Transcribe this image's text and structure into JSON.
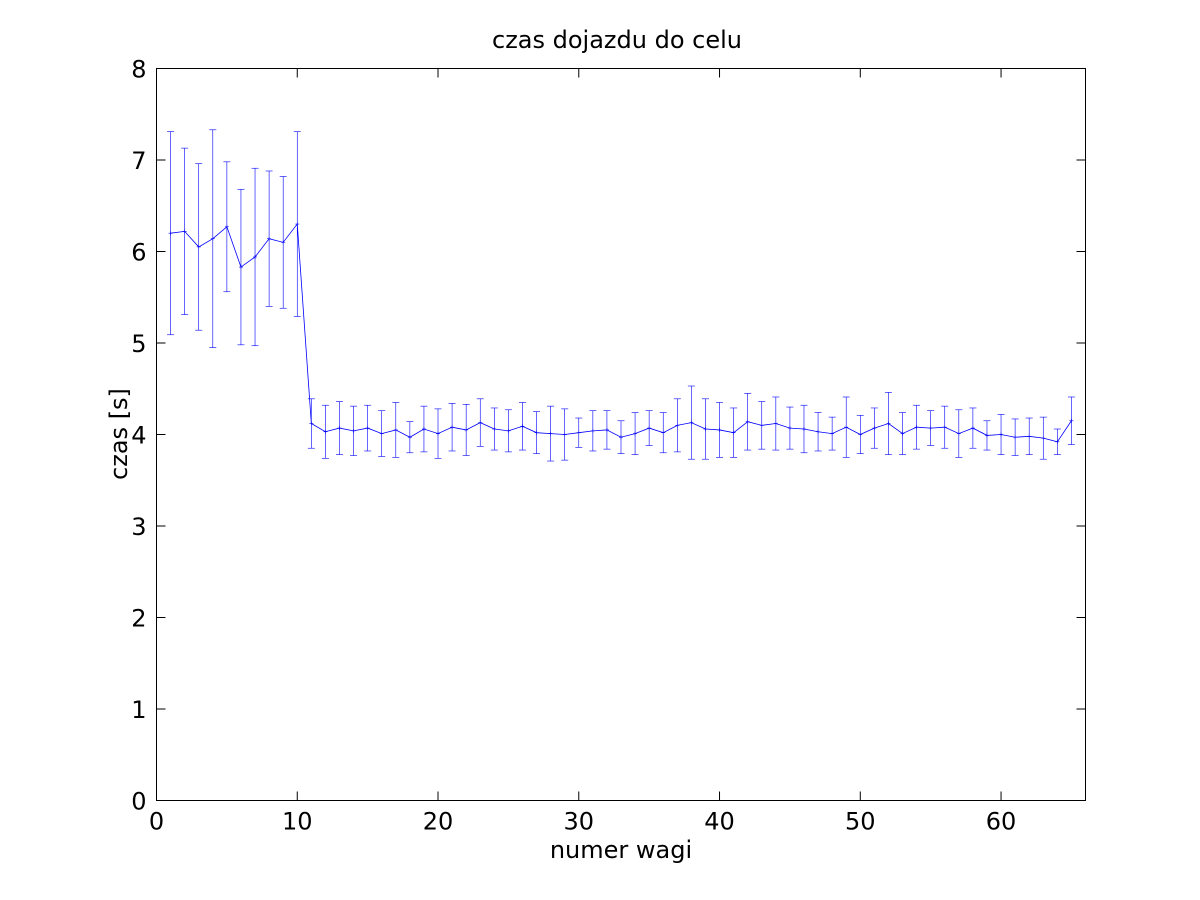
{
  "chart_data": {
    "type": "line",
    "title": "czas dojazdu do celu",
    "xlabel": "numer wagi",
    "ylabel": "czas [s]",
    "xlim": [
      0,
      66
    ],
    "ylim": [
      0,
      8
    ],
    "xticks": [
      0,
      10,
      20,
      30,
      40,
      50,
      60
    ],
    "yticks": [
      0,
      1,
      2,
      3,
      4,
      5,
      6,
      7,
      8
    ],
    "grid": false,
    "color": "#0000ff",
    "series": [
      {
        "x": [
          1,
          2,
          3,
          4,
          5,
          6,
          7,
          8,
          9,
          10,
          11,
          12,
          13,
          14,
          15,
          16,
          17,
          18,
          19,
          20,
          21,
          22,
          23,
          24,
          25,
          26,
          27,
          28,
          29,
          30,
          31,
          32,
          33,
          34,
          35,
          36,
          37,
          38,
          39,
          40,
          41,
          42,
          43,
          44,
          45,
          46,
          47,
          48,
          49,
          50,
          51,
          52,
          53,
          54,
          55,
          56,
          57,
          58,
          59,
          60,
          61,
          62,
          63,
          64,
          65
        ],
        "y": [
          6.2,
          6.22,
          6.05,
          6.14,
          6.27,
          5.83,
          5.94,
          6.14,
          6.1,
          6.3,
          4.12,
          4.03,
          4.07,
          4.04,
          4.07,
          4.01,
          4.05,
          3.97,
          4.06,
          4.01,
          4.08,
          4.05,
          4.13,
          4.06,
          4.04,
          4.09,
          4.02,
          4.01,
          4.0,
          4.02,
          4.04,
          4.05,
          3.97,
          4.01,
          4.07,
          4.02,
          4.1,
          4.13,
          4.06,
          4.05,
          4.02,
          4.14,
          4.1,
          4.12,
          4.07,
          4.06,
          4.03,
          4.01,
          4.08,
          4.0,
          4.07,
          4.12,
          4.01,
          4.08,
          4.07,
          4.08,
          4.01,
          4.07,
          3.99,
          4.0,
          3.97,
          3.98,
          3.96,
          3.92,
          4.15
        ],
        "err": [
          1.11,
          0.91,
          0.91,
          1.19,
          0.71,
          0.85,
          0.97,
          0.74,
          0.72,
          1.01,
          0.27,
          0.29,
          0.29,
          0.27,
          0.25,
          0.25,
          0.3,
          0.17,
          0.25,
          0.27,
          0.26,
          0.28,
          0.26,
          0.23,
          0.23,
          0.26,
          0.23,
          0.3,
          0.28,
          0.16,
          0.22,
          0.21,
          0.18,
          0.23,
          0.19,
          0.22,
          0.29,
          0.4,
          0.33,
          0.3,
          0.27,
          0.31,
          0.26,
          0.29,
          0.23,
          0.26,
          0.21,
          0.18,
          0.33,
          0.21,
          0.22,
          0.34,
          0.23,
          0.24,
          0.19,
          0.23,
          0.26,
          0.22,
          0.16,
          0.22,
          0.2,
          0.2,
          0.23,
          0.14,
          0.26
        ]
      }
    ]
  }
}
